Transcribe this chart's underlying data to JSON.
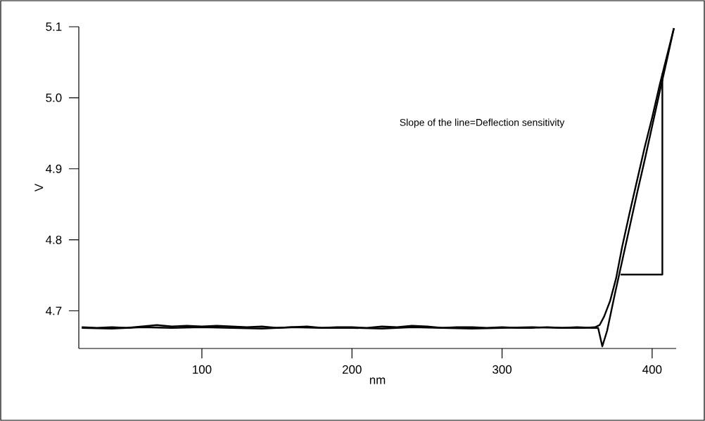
{
  "chart_data": {
    "type": "line",
    "xlabel": "nm",
    "ylabel": "V",
    "annotations": [
      "Slope of the line=Deflection sensitivity"
    ],
    "xlim": [
      18,
      416
    ],
    "ylim": [
      4.647,
      5.1
    ],
    "xticks": [
      100,
      200,
      300,
      400
    ],
    "yticks": [
      4.7,
      4.8,
      4.9,
      {
        "value": 5.0,
        "label": "5.0"
      },
      5.1
    ],
    "grid": false,
    "marker": "none",
    "line_style": "solid",
    "series": [
      {
        "color": "#000000",
        "x": [
          20,
          30,
          40,
          50,
          60,
          70,
          80,
          90,
          100,
          110,
          120,
          130,
          140,
          150,
          160,
          170,
          180,
          190,
          200,
          210,
          220,
          230,
          240,
          250,
          260,
          270,
          280,
          290,
          300,
          310,
          320,
          330,
          340,
          350,
          360,
          364,
          366.8,
          370,
          375,
          380,
          385,
          390,
          395,
          400,
          405,
          410,
          414.5
        ],
        "values": [
          4.677,
          4.676,
          4.677,
          4.676,
          4.678,
          4.68,
          4.678,
          4.679,
          4.678,
          4.679,
          4.678,
          4.677,
          4.678,
          4.676,
          4.677,
          4.678,
          4.676,
          4.677,
          4.677,
          4.676,
          4.678,
          4.677,
          4.679,
          4.678,
          4.676,
          4.677,
          4.677,
          4.676,
          4.677,
          4.676,
          4.676,
          4.677,
          4.676,
          4.677,
          4.676,
          4.676,
          4.65,
          4.672,
          4.722,
          4.77,
          4.818,
          4.866,
          4.912,
          4.96,
          5.008,
          5.055,
          5.098
        ]
      },
      {
        "color": "#000000",
        "x": [
          20,
          40,
          60,
          80,
          100,
          120,
          140,
          160,
          180,
          200,
          220,
          240,
          260,
          280,
          300,
          320,
          340,
          355,
          362,
          365,
          368,
          372,
          376,
          380,
          385,
          390,
          395,
          400,
          405,
          410,
          414.5
        ],
        "values": [
          4.676,
          4.675,
          4.677,
          4.676,
          4.677,
          4.676,
          4.675,
          4.677,
          4.676,
          4.676,
          4.675,
          4.677,
          4.676,
          4.675,
          4.676,
          4.677,
          4.676,
          4.676,
          4.677,
          4.68,
          4.692,
          4.714,
          4.746,
          4.79,
          4.838,
          4.884,
          4.93,
          4.972,
          5.018,
          5.06,
          5.098
        ]
      },
      {
        "color": "#000000",
        "x": [
          379,
          406.8,
          406.8
        ],
        "values": [
          4.751,
          4.751,
          5.034
        ]
      }
    ]
  }
}
